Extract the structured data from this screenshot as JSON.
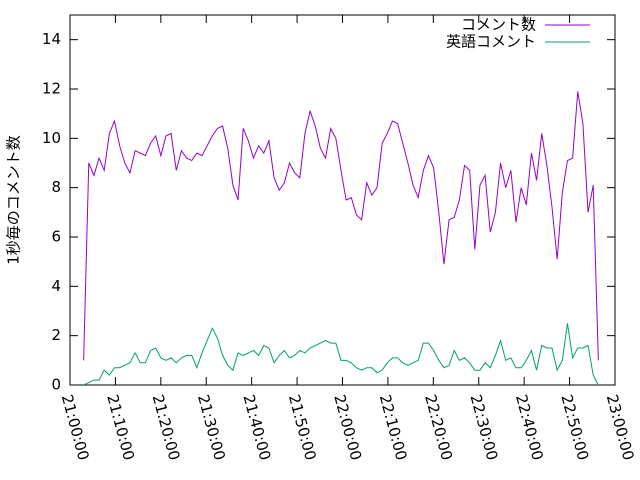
{
  "chart_data": {
    "type": "line",
    "ylabel": "1秒毎のコメント数",
    "x": [
      "21:03:00",
      "21:04:08",
      "21:05:16",
      "21:06:24",
      "21:07:32",
      "21:08:40",
      "21:09:48",
      "21:10:56",
      "21:12:04",
      "21:13:12",
      "21:14:20",
      "21:15:28",
      "21:16:36",
      "21:17:44",
      "21:18:52",
      "21:20:00",
      "21:21:08",
      "21:22:16",
      "21:23:24",
      "21:24:32",
      "21:25:40",
      "21:26:48",
      "21:27:56",
      "21:29:04",
      "21:30:12",
      "21:31:20",
      "21:32:28",
      "21:33:36",
      "21:34:44",
      "21:35:52",
      "21:37:00",
      "21:38:08",
      "21:39:16",
      "21:40:24",
      "21:41:32",
      "21:42:40",
      "21:43:48",
      "21:44:56",
      "21:46:04",
      "21:47:12",
      "21:48:20",
      "21:49:28",
      "21:50:36",
      "21:51:44",
      "21:52:52",
      "21:54:00",
      "21:55:08",
      "21:56:16",
      "21:57:24",
      "21:58:32",
      "21:59:40",
      "22:00:48",
      "22:01:56",
      "22:03:04",
      "22:04:12",
      "22:05:20",
      "22:06:28",
      "22:07:36",
      "22:08:44",
      "22:09:52",
      "22:11:00",
      "22:12:08",
      "22:13:16",
      "22:14:24",
      "22:15:32",
      "22:16:40",
      "22:17:48",
      "22:18:56",
      "22:20:04",
      "22:21:12",
      "22:22:20",
      "22:23:28",
      "22:24:36",
      "22:25:44",
      "22:26:52",
      "22:28:00",
      "22:29:08",
      "22:30:16",
      "22:31:24",
      "22:32:32",
      "22:33:40",
      "22:34:48",
      "22:35:56",
      "22:37:04",
      "22:38:12",
      "22:39:20",
      "22:40:28",
      "22:41:36",
      "22:42:44",
      "22:43:52",
      "22:45:00",
      "22:46:08",
      "22:47:16",
      "22:48:24",
      "22:49:32",
      "22:50:40",
      "22:51:48",
      "22:52:56",
      "22:54:04",
      "22:55:12",
      "22:56:20"
    ],
    "series": [
      {
        "name": "コメント数",
        "color": "#9400d3",
        "values": [
          1.0,
          9.0,
          8.5,
          9.2,
          8.7,
          10.2,
          10.7,
          9.7,
          9.0,
          8.6,
          9.5,
          9.4,
          9.3,
          9.8,
          10.1,
          9.3,
          10.1,
          10.2,
          8.7,
          9.5,
          9.2,
          9.1,
          9.4,
          9.3,
          9.7,
          10.1,
          10.4,
          10.5,
          9.6,
          8.1,
          7.5,
          10.4,
          9.9,
          9.2,
          9.7,
          9.4,
          9.9,
          8.4,
          7.9,
          8.2,
          9.0,
          8.6,
          8.4,
          10.2,
          11.1,
          10.5,
          9.6,
          9.2,
          10.4,
          10.0,
          8.7,
          7.5,
          7.6,
          6.9,
          6.7,
          8.2,
          7.7,
          8.0,
          9.8,
          10.2,
          10.7,
          10.6,
          9.8,
          9.0,
          8.1,
          7.6,
          8.7,
          9.3,
          8.8,
          7.0,
          4.9,
          6.7,
          6.8,
          7.5,
          8.9,
          8.7,
          5.5,
          8.1,
          8.5,
          6.2,
          7.0,
          9.0,
          8.0,
          8.7,
          6.6,
          8.0,
          7.3,
          9.4,
          8.3,
          10.2,
          8.9,
          7.2,
          5.1,
          7.8,
          9.1,
          9.2,
          11.9,
          10.6,
          7.0,
          8.1,
          1.0
        ]
      },
      {
        "name": "英語コメント",
        "color": "#009e73",
        "values": [
          0.0,
          0.1,
          0.2,
          0.2,
          0.6,
          0.4,
          0.7,
          0.7,
          0.8,
          0.9,
          1.3,
          0.9,
          0.9,
          1.4,
          1.5,
          1.1,
          1.0,
          1.1,
          0.9,
          1.1,
          1.2,
          1.2,
          0.7,
          1.3,
          1.8,
          2.3,
          1.9,
          1.2,
          0.8,
          0.6,
          1.3,
          1.2,
          1.3,
          1.4,
          1.2,
          1.6,
          1.5,
          0.9,
          1.2,
          1.4,
          1.1,
          1.2,
          1.4,
          1.3,
          1.5,
          1.6,
          1.7,
          1.8,
          1.7,
          1.7,
          1.0,
          1.0,
          0.9,
          0.7,
          0.6,
          0.7,
          0.7,
          0.5,
          0.6,
          0.9,
          1.1,
          1.1,
          0.9,
          0.8,
          0.9,
          1.0,
          1.7,
          1.7,
          1.4,
          1.0,
          0.7,
          0.8,
          1.4,
          1.0,
          1.1,
          0.9,
          0.6,
          0.6,
          0.9,
          0.7,
          1.2,
          1.8,
          1.0,
          1.1,
          0.7,
          0.7,
          1.0,
          1.4,
          0.6,
          1.6,
          1.5,
          1.5,
          0.6,
          1.0,
          2.5,
          1.1,
          1.5,
          1.5,
          1.6,
          0.4,
          0.0
        ]
      }
    ],
    "xlim": [
      "21:00:00",
      "23:00:00"
    ],
    "xticks": [
      "21:00:00",
      "21:10:00",
      "21:20:00",
      "21:30:00",
      "21:40:00",
      "21:50:00",
      "22:00:00",
      "22:10:00",
      "22:20:00",
      "22:30:00",
      "22:40:00",
      "22:50:00",
      "23:00:00"
    ],
    "ylim": [
      0,
      15
    ],
    "yticks": [
      0,
      2,
      4,
      6,
      8,
      10,
      12,
      14
    ],
    "legend": "top-right"
  }
}
